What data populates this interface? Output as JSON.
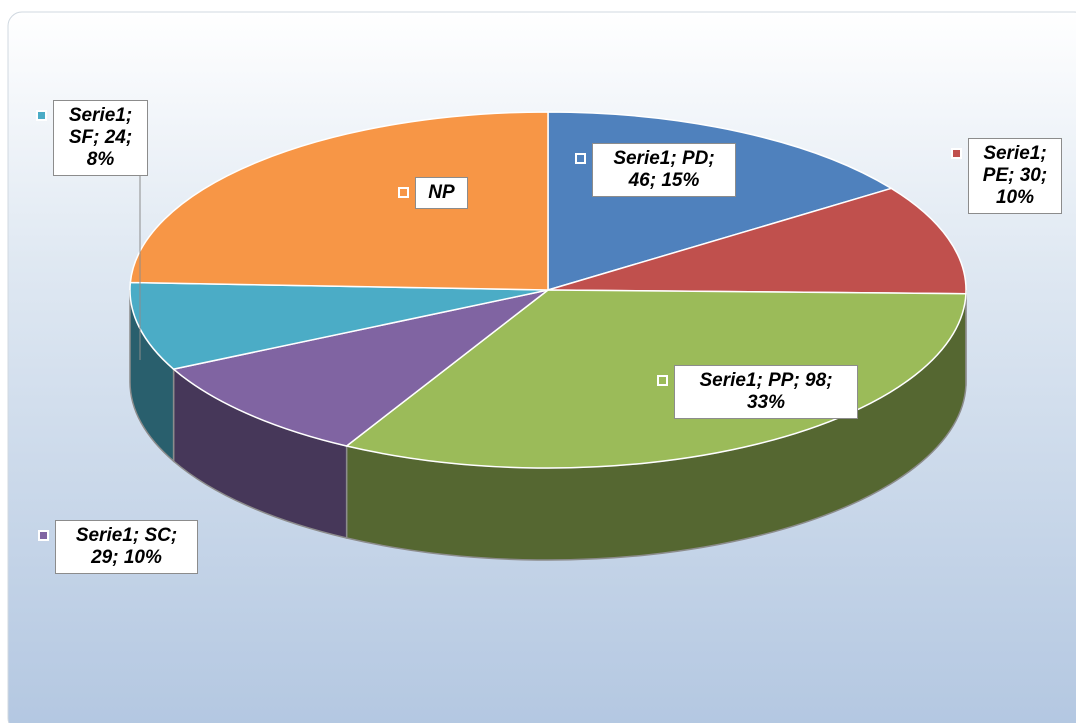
{
  "chart_data": {
    "type": "pie",
    "series_name": "Serie1",
    "categories": [
      "PD",
      "PE",
      "PP",
      "SC",
      "SF",
      "NP"
    ],
    "values": [
      46,
      30,
      98,
      29,
      24,
      73
    ],
    "value_labels": [
      "Serie1; PD; 46; 15%",
      "Serie1; PE; 30; 10%",
      "Serie1; PP; 98; 33%",
      "Serie1; SC; 29; 10%",
      "Serie1; SF; 24; 8%",
      "NP"
    ],
    "colors": [
      "#4f81bd",
      "#c0504d",
      "#9bbb59",
      "#8064a2",
      "#4bacc6",
      "#f79646"
    ]
  }
}
